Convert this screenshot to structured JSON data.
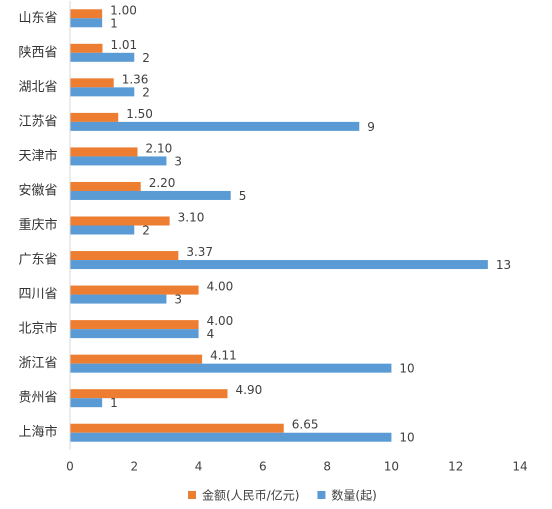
{
  "chart_data": {
    "type": "bar",
    "orientation": "horizontal",
    "categories": [
      "山东省",
      "陕西省",
      "湖北省",
      "江苏省",
      "天津市",
      "安徽省",
      "重庆市",
      "广东省",
      "四川省",
      "北京市",
      "浙江省",
      "贵州省",
      "上海市"
    ],
    "series": [
      {
        "name": "金额(人民币/亿元)",
        "color": "#ed7d31",
        "values": [
          1.0,
          1.01,
          1.36,
          1.5,
          2.1,
          2.2,
          3.1,
          3.37,
          4.0,
          4.0,
          4.11,
          4.9,
          6.65
        ],
        "value_labels": [
          "1.00",
          "1.01",
          "1.36",
          "1.50",
          "2.10",
          "2.20",
          "3.10",
          "3.37",
          "4.00",
          "4.00",
          "4.11",
          "4.90",
          "6.65"
        ]
      },
      {
        "name": "数量(起)",
        "color": "#5b9bd5",
        "values": [
          1,
          2,
          2,
          9,
          3,
          5,
          2,
          13,
          3,
          4,
          10,
          1,
          10
        ]
      }
    ],
    "xlim": [
      0,
      14
    ],
    "xticks": [
      0,
      2,
      4,
      6,
      8,
      10,
      12,
      14
    ],
    "grid": false,
    "legend": "bottom"
  }
}
